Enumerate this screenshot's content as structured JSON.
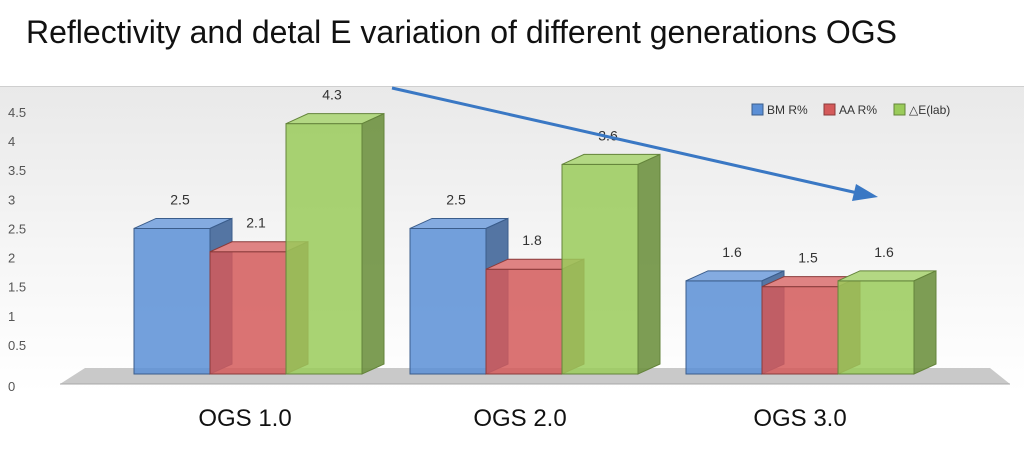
{
  "title": "Reflectivity and detal E variation of different generations OGS",
  "chart_data": {
    "type": "bar",
    "categories": [
      "OGS 1.0",
      "OGS 2.0",
      "OGS 3.0"
    ],
    "series": [
      {
        "name": "BM R%",
        "values": [
          2.5,
          2.5,
          1.6
        ],
        "color": "#5b8fd6"
      },
      {
        "name": "AA R%",
        "values": [
          2.1,
          1.8,
          1.5
        ],
        "color": "#d45a5a"
      },
      {
        "name": "△E(lab)",
        "values": [
          4.3,
          3.6,
          1.6
        ],
        "color": "#9acb5a"
      }
    ],
    "y_ticks": [
      "0",
      "0.5",
      "1",
      "1.5",
      "2",
      "2.5",
      "3",
      "3.5",
      "4",
      "4.5"
    ],
    "ylim": [
      0,
      4.5
    ],
    "legend_position": "top-right",
    "trend_arrow": true
  }
}
